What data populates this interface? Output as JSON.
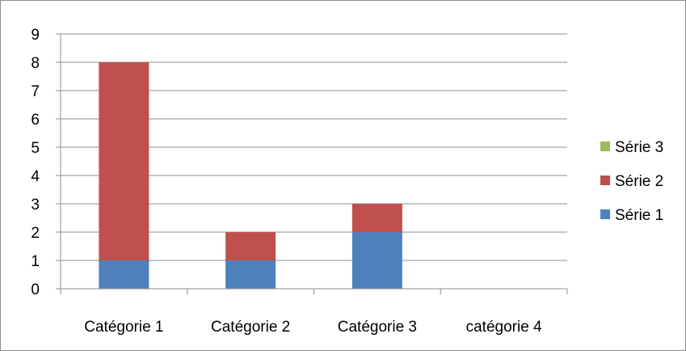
{
  "chart_data": {
    "type": "bar",
    "stacked": true,
    "categories": [
      "Catégorie 1",
      "Catégorie 2",
      "Catégorie 3",
      "catégorie 4"
    ],
    "series": [
      {
        "name": "Série 1",
        "values": [
          1,
          1,
          2,
          0
        ],
        "color": "#4f81bd"
      },
      {
        "name": "Série 2",
        "values": [
          7,
          1,
          1,
          0
        ],
        "color": "#c0504d"
      },
      {
        "name": "Série 3",
        "values": [
          0,
          0,
          0,
          0
        ],
        "color": "#9bbb59"
      }
    ],
    "ylim": [
      0,
      9
    ],
    "yticks": [
      0,
      1,
      2,
      3,
      4,
      5,
      6,
      7,
      8,
      9
    ],
    "grid": true,
    "legend": "right",
    "title": "",
    "xlabel": "",
    "ylabel": ""
  }
}
